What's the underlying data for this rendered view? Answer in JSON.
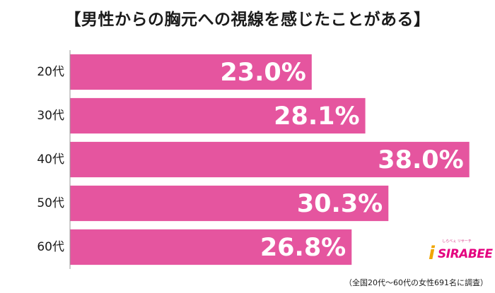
{
  "title": "【男性からの胸元への視線を感じたことがある】",
  "colors": {
    "bar": "#e5559f",
    "axis": "#999999",
    "label": "#1a1a1a",
    "value_text": "#ffffff"
  },
  "chart_data": {
    "type": "bar",
    "orientation": "horizontal",
    "title": "【男性からの胸元への視線を感じたことがある】",
    "categories": [
      "20代",
      "30代",
      "40代",
      "50代",
      "60代"
    ],
    "values": [
      23.0,
      28.1,
      38.0,
      30.3,
      26.8
    ],
    "value_labels": [
      "23.0%",
      "28.1%",
      "38.0%",
      "30.3%",
      "26.8%"
    ],
    "unit": "%",
    "xlim": [
      0,
      39.5
    ],
    "xlabel": "",
    "ylabel": "",
    "grid": false,
    "legend": "none"
  },
  "logo": {
    "tagline": "しらべぇ リサーチ",
    "letter": "i",
    "word": "SIRABEE"
  },
  "footnote": "（全国20代～60代の女性691名に調査）"
}
